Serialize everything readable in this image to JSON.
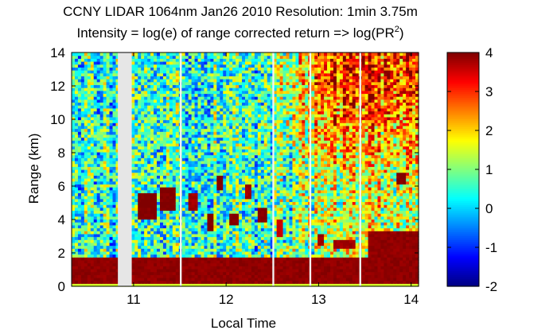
{
  "chart_data": {
    "type": "heatmap",
    "title_line1": "CCNY LIDAR 1064nm Jan26 2010 Resolution: 1min 3.75m",
    "title_line2_prefix": "Intensity = log(e) of range corrected return => log(PR",
    "title_line2_sup": "2",
    "title_line2_suffix": ")",
    "xlabel": "Local Time",
    "ylabel": "Range (km)",
    "xlim": [
      10.33,
      14.08
    ],
    "ylim": [
      0,
      14
    ],
    "xticks": [
      11,
      12,
      13,
      14
    ],
    "yticks": [
      0,
      2,
      4,
      6,
      8,
      10,
      12,
      14
    ],
    "colorbar": {
      "range": [
        -2,
        4
      ],
      "ticks": [
        -2,
        -1,
        0,
        1,
        2,
        3,
        4
      ],
      "colormap": "jet"
    },
    "data_gaps": [
      {
        "start": 10.83,
        "end": 10.98
      },
      {
        "start": 11.5,
        "end": 11.52
      },
      {
        "start": 12.5,
        "end": 12.52
      },
      {
        "start": 12.9,
        "end": 12.92
      },
      {
        "start": 13.44,
        "end": 13.46
      }
    ],
    "features": {
      "boundary_layer_top_km": 1.8,
      "boundary_layer_value": 4,
      "surface_layer_value": 1.5,
      "background_early_value": 0.5,
      "background_late_value": 3,
      "cloud_layers": [
        {
          "start": 11.05,
          "end": 11.25,
          "bottom_km": 4.0,
          "top_km": 5.6,
          "value": 4
        },
        {
          "start": 11.3,
          "end": 11.45,
          "bottom_km": 4.6,
          "top_km": 6.0,
          "value": 4
        },
        {
          "start": 11.6,
          "end": 11.68,
          "bottom_km": 4.5,
          "top_km": 5.6,
          "value": 3.8
        },
        {
          "start": 11.78,
          "end": 11.85,
          "bottom_km": 3.4,
          "top_km": 4.4,
          "value": 4
        },
        {
          "start": 11.9,
          "end": 11.98,
          "bottom_km": 5.8,
          "top_km": 6.6,
          "value": 4
        },
        {
          "start": 12.05,
          "end": 12.12,
          "bottom_km": 3.6,
          "top_km": 4.4,
          "value": 4
        },
        {
          "start": 12.2,
          "end": 12.28,
          "bottom_km": 5.2,
          "top_km": 6.2,
          "value": 3.8
        },
        {
          "start": 12.35,
          "end": 12.45,
          "bottom_km": 3.8,
          "top_km": 4.8,
          "value": 4
        },
        {
          "start": 12.55,
          "end": 12.62,
          "bottom_km": 3.0,
          "top_km": 4.0,
          "value": 3.6
        },
        {
          "start": 12.98,
          "end": 13.05,
          "bottom_km": 2.4,
          "top_km": 3.2,
          "value": 3.8
        },
        {
          "start": 13.15,
          "end": 13.4,
          "bottom_km": 2.2,
          "top_km": 2.8,
          "value": 3.8
        },
        {
          "start": 13.55,
          "end": 14.08,
          "bottom_km": 1.8,
          "top_km": 3.4,
          "value": 3.9
        },
        {
          "start": 13.85,
          "end": 13.95,
          "bottom_km": 6.2,
          "top_km": 6.8,
          "value": 4
        }
      ]
    }
  }
}
